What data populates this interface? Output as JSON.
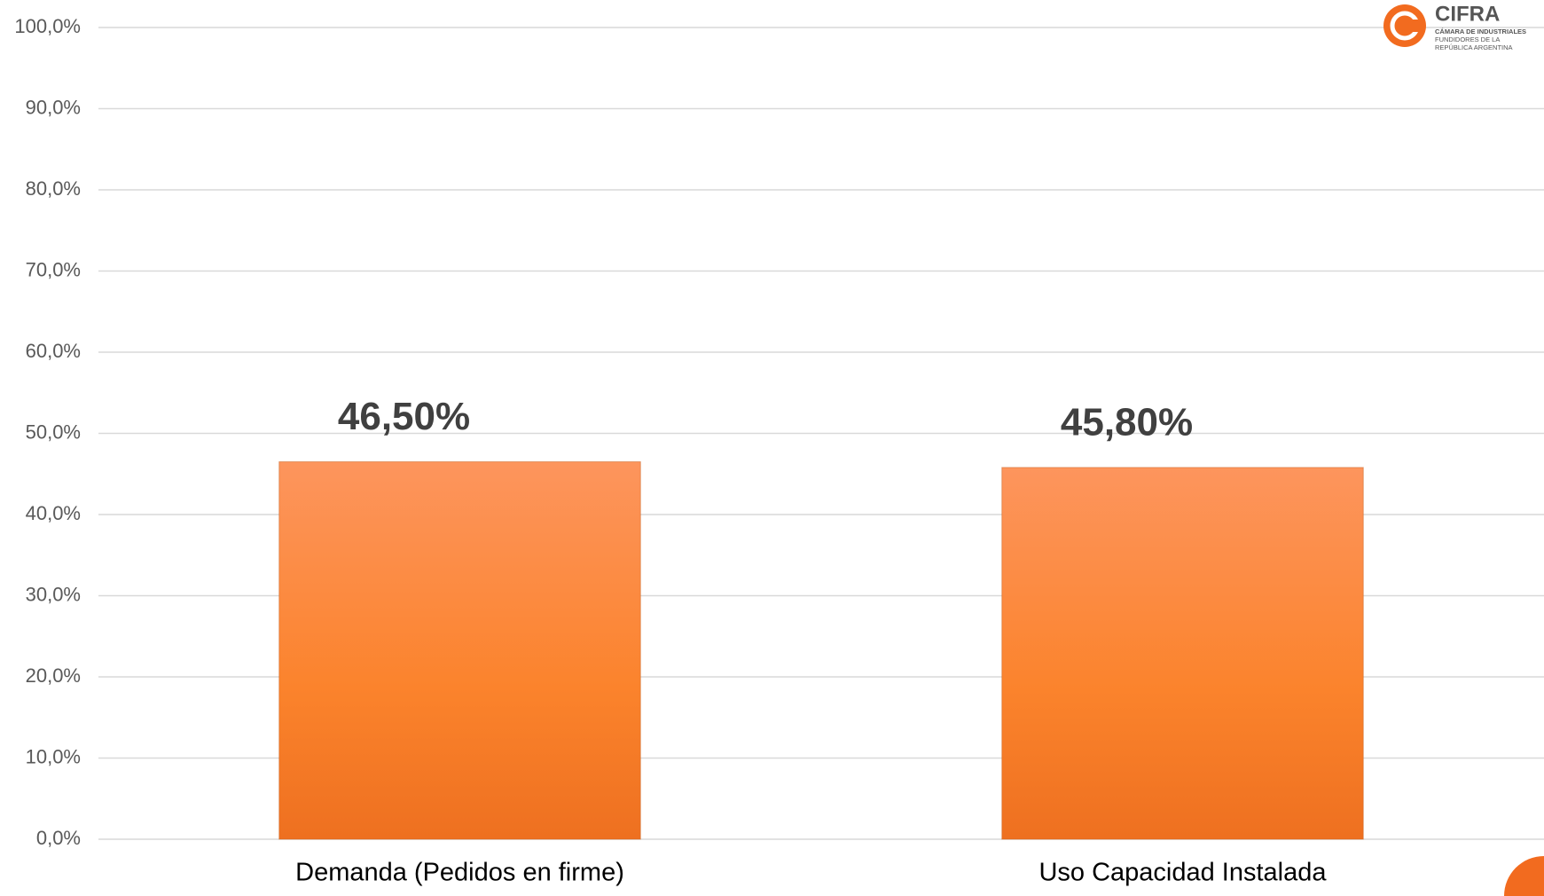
{
  "chart_data": {
    "type": "bar",
    "categories": [
      "Demanda (Pedidos en firme)",
      "Uso Capacidad Instalada"
    ],
    "values": [
      46.5,
      45.8
    ],
    "value_labels": [
      "46,50%",
      "45,80%"
    ],
    "color": "#f8832e",
    "ylim": [
      0,
      100
    ],
    "yticks": [
      {
        "value": 0,
        "label": "0,0%"
      },
      {
        "value": 10,
        "label": "10,0%"
      },
      {
        "value": 20,
        "label": "20,0%"
      },
      {
        "value": 30,
        "label": "30,0%"
      },
      {
        "value": 40,
        "label": "40,0%"
      },
      {
        "value": 50,
        "label": "50,0%"
      },
      {
        "value": 60,
        "label": "60,0%"
      },
      {
        "value": 70,
        "label": "70,0%"
      },
      {
        "value": 80,
        "label": "80,0%"
      },
      {
        "value": 90,
        "label": "90,0%"
      },
      {
        "value": 100,
        "label": "100,0%"
      }
    ],
    "grid": true
  },
  "logo": {
    "name": "CIFRA",
    "lines": [
      "CÁMARA DE INDUSTRIALES",
      "FUNDIDORES DE LA",
      "REPÚBLICA ARGENTINA"
    ]
  }
}
